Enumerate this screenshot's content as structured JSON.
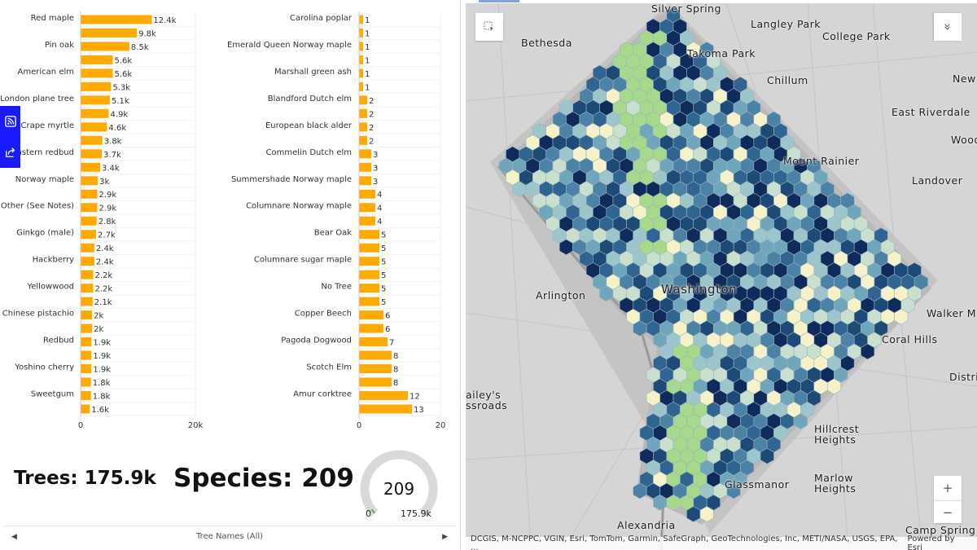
{
  "chart_data": [
    {
      "type": "bar",
      "orientation": "horizontal",
      "categories": [
        "Red maple",
        "",
        "Pin oak",
        "",
        "American elm",
        "",
        "London plane tree",
        "",
        "Crape myrtle",
        "",
        "Eastern redbud",
        "",
        "Norway maple",
        "",
        "Other (See Notes)",
        "",
        "Ginkgo (male)",
        "",
        "Hackberry",
        "",
        "Yellowwood",
        "",
        "Chinese pistachio",
        "",
        "Redbud",
        "",
        "Yoshino cherry",
        "",
        "Sweetgum",
        ""
      ],
      "values": [
        12400,
        9800,
        8500,
        5600,
        5600,
        5300,
        5100,
        4900,
        4600,
        3800,
        3700,
        3400,
        3000,
        2900,
        2900,
        2800,
        2700,
        2400,
        2400,
        2200,
        2200,
        2100,
        2000,
        2000,
        1900,
        1900,
        1900,
        1800,
        1800,
        1600
      ],
      "value_labels": [
        "12.4k",
        "9.8k",
        "8.5k",
        "5.6k",
        "5.6k",
        "5.3k",
        "5.1k",
        "4.9k",
        "4.6k",
        "3.8k",
        "3.7k",
        "3.4k",
        "3k",
        "2.9k",
        "2.9k",
        "2.8k",
        "2.7k",
        "2.4k",
        "2.4k",
        "2.2k",
        "2.2k",
        "2.1k",
        "2k",
        "2k",
        "1.9k",
        "1.9k",
        "1.9k",
        "1.8k",
        "1.8k",
        "1.6k"
      ],
      "xlim": [
        0,
        20000
      ],
      "ticks": [
        "0",
        "20k"
      ],
      "color": "#ffaa00",
      "grid": true
    },
    {
      "type": "bar",
      "orientation": "horizontal",
      "categories": [
        "Carolina poplar",
        "",
        "Emerald Queen Norway maple",
        "",
        "Marshall green ash",
        "",
        "Blandford Dutch elm",
        "",
        "European black alder",
        "",
        "Commelin Dutch elm",
        "",
        "Summershade Norway maple",
        "",
        "Columnare Norway maple",
        "",
        "Bear Oak",
        "",
        "Columnare sugar maple",
        "",
        "No Tree",
        "",
        "Copper Beech",
        "",
        "Pagoda Dogwood",
        "",
        "Scotch Elm",
        "",
        "Amur corktree",
        ""
      ],
      "values": [
        1,
        1,
        1,
        1,
        1,
        1,
        2,
        2,
        2,
        2,
        3,
        3,
        3,
        4,
        4,
        4,
        5,
        5,
        5,
        5,
        5,
        5,
        6,
        6,
        7,
        8,
        8,
        8,
        12,
        13
      ],
      "value_labels": [
        "1",
        "1",
        "1",
        "1",
        "1",
        "1",
        "2",
        "2",
        "2",
        "2",
        "3",
        "3",
        "3",
        "4",
        "4",
        "4",
        "5",
        "5",
        "5",
        "5",
        "5",
        "5",
        "6",
        "6",
        "7",
        "8",
        "8",
        "8",
        "12",
        "13"
      ],
      "xlim": [
        0,
        20
      ],
      "ticks": [
        "0",
        "20"
      ],
      "color": "#ffaa00",
      "grid": true
    }
  ],
  "indicators": {
    "trees": "Trees: 175.9k",
    "species": "Species: 209"
  },
  "gauge": {
    "value": "209",
    "min": "0",
    "max": "175.9k",
    "fraction": 0.0012,
    "track_color": "#d9d9d9",
    "fill_color": "#5aa95a"
  },
  "footer": {
    "label": "Tree Names (All)",
    "prev": "◀",
    "next": "▶"
  },
  "float_widget": {
    "icons": [
      "rss-feed-icon",
      "share-icon"
    ],
    "color": "#1a1aff"
  },
  "map": {
    "places": [
      {
        "name": "Silver Spring"
      },
      {
        "name": "Langley Park"
      },
      {
        "name": "College Park"
      },
      {
        "name": "Bethesda"
      },
      {
        "name": "Takoma Park"
      },
      {
        "name": "Chillum"
      },
      {
        "name": "New"
      },
      {
        "name": "East Riverdale"
      },
      {
        "name": "Wood"
      },
      {
        "name": "Mount Rainier"
      },
      {
        "name": "Landover"
      },
      {
        "name": "Arlington"
      },
      {
        "name": "Washington"
      },
      {
        "name": "Walker M"
      },
      {
        "name": "Coral Hills"
      },
      {
        "name": "Distric"
      },
      {
        "name": "ailey's\nssroads"
      },
      {
        "name": "Hillcrest\nHeights"
      },
      {
        "name": "Marlow\nHeights"
      },
      {
        "name": "Glassmanor"
      },
      {
        "name": "Alexandria"
      },
      {
        "name": "Camp Spring"
      }
    ],
    "attribution": "DCGIS, M-NCPPC, VGIN, Esri, TomTom, Garmin, SafeGraph, GeoTechnologies, Inc, METI/NASA, USGS, EPA, ...",
    "powered_by": "Powered by Esri",
    "zoom_in": "+",
    "zoom_out": "−",
    "expand": "»",
    "hex_colors": [
      "#0f2b5b",
      "#1e4a78",
      "#2f6590",
      "#4b82a6",
      "#6fa6bb",
      "#9cc6cb",
      "#c9e0cf",
      "#f5f2c9"
    ],
    "park_color": "#a6d98c"
  }
}
